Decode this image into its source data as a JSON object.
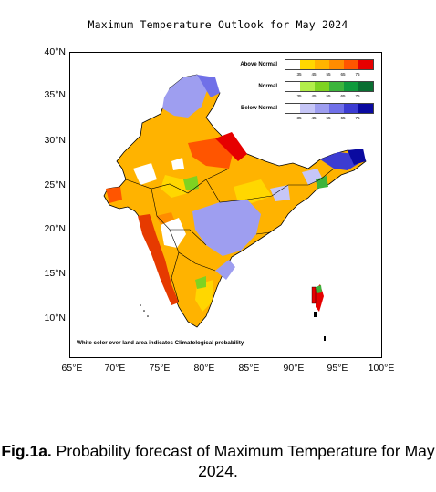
{
  "title": "Maximum Temperature Outlook for May 2024",
  "lat_labels": [
    "40°N",
    "35°N",
    "30°N",
    "25°N",
    "20°N",
    "15°N",
    "10°N"
  ],
  "lon_labels": [
    "65°E",
    "70°E",
    "75°E",
    "80°E",
    "85°E",
    "90°E",
    "95°E",
    "100°E"
  ],
  "legend": {
    "above": {
      "label": "Above Normal",
      "colors": [
        "#ffffff",
        "#ffd700",
        "#ffb300",
        "#ff8c00",
        "#ff5500",
        "#e60000"
      ]
    },
    "normal": {
      "label": "Normal",
      "colors": [
        "#ffffff",
        "#b2ee4a",
        "#7ed321",
        "#3cb43c",
        "#0f9a3c",
        "#0a6e32"
      ]
    },
    "below": {
      "label": "Below Normal",
      "colors": [
        "#ffffff",
        "#c6c6f7",
        "#9e9ef0",
        "#7070e8",
        "#3c3cd2",
        "#0a0aa0"
      ]
    },
    "ticks": [
      "35",
      "45",
      "55",
      "65",
      "75"
    ]
  },
  "footnote": "White color over land area indicates Climatological probability",
  "caption": {
    "prefix": "Fig.1a.",
    "text": " Probability forecast of Maximum Temperature for May 2024."
  }
}
